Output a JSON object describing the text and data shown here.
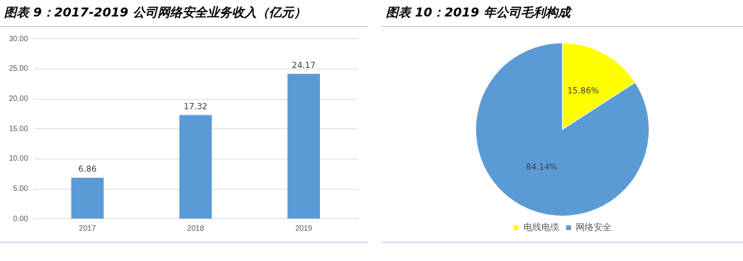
{
  "chart_data": [
    {
      "type": "bar",
      "title": "图表 9：2017-2019 公司网络安全业务收入（亿元）",
      "categories": [
        "2017",
        "2018",
        "2019"
      ],
      "values": [
        6.86,
        17.32,
        24.17
      ],
      "color": "#5b9bd5",
      "ylim": [
        0,
        30
      ],
      "yticks": [
        {
          "value": 0,
          "label": "0.00"
        },
        {
          "value": 5,
          "label": "5.00"
        },
        {
          "value": 10,
          "label": "10.00"
        },
        {
          "value": 15,
          "label": "15.00"
        },
        {
          "value": 20,
          "label": "20.00"
        },
        {
          "value": 25,
          "label": "25.00"
        },
        {
          "value": 30,
          "label": "30.00"
        }
      ],
      "grid": "y",
      "data_labels": true
    },
    {
      "type": "pie",
      "title": "图表 10：2019 年公司毛利构成",
      "categories": [
        "电线电缆",
        "网络安全"
      ],
      "values": [
        15.86,
        84.14
      ],
      "colors": [
        "#ffff00",
        "#5b9bd5"
      ],
      "value_labels": [
        "15.86%",
        "84.14%"
      ],
      "legend": "bottom"
    }
  ]
}
